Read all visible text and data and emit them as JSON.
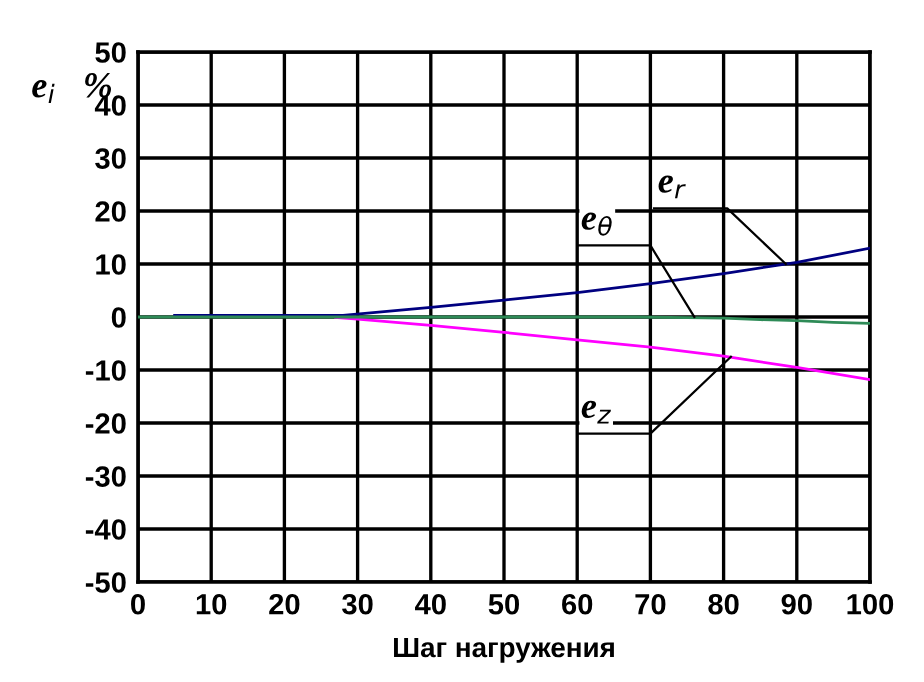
{
  "chart_data": {
    "type": "line",
    "xlabel": "Шаг нагружения",
    "ylabel": "e$_{i}$   %",
    "xlim": [
      0,
      100
    ],
    "xticks": [
      0,
      10,
      20,
      30,
      40,
      50,
      60,
      70,
      80,
      90,
      100
    ],
    "ylim": [
      -50,
      50
    ],
    "yticks": [
      -50,
      -40,
      -30,
      -20,
      -10,
      0,
      10,
      20,
      30,
      40,
      50
    ],
    "grid": true,
    "marker": "none",
    "line_style": "solid",
    "series": [
      {
        "color": "#000080",
        "x": [
          5,
          28,
          40,
          50,
          60,
          70,
          80,
          90,
          100
        ],
        "values": [
          0.3,
          0.3,
          1.8,
          3.2,
          4.6,
          6.3,
          8.2,
          10.3,
          13
        ]
      },
      {
        "color": "#ff00ff",
        "x": [
          27,
          30,
          40,
          50,
          60,
          70,
          80,
          90,
          100
        ],
        "values": [
          -0.1,
          -0.4,
          -1.6,
          -2.9,
          -4.3,
          -5.7,
          -7.4,
          -9.5,
          -11.8
        ]
      },
      {
        "color": "#2e8b57",
        "x": [
          0,
          68,
          75,
          80,
          85,
          90,
          95,
          100
        ],
        "values": [
          0,
          0,
          -0.1,
          -0.2,
          -0.5,
          -0.7,
          -1.0,
          -1.2
        ]
      }
    ],
    "annotations": [
      {
        "text": "e$_{r}$",
        "x": 88.5,
        "y": 10
      },
      {
        "text": "e$_{θ}$",
        "x": 76,
        "y": 0
      },
      {
        "text": "e$_{z}$",
        "x": 81,
        "y": -7.5
      }
    ]
  }
}
